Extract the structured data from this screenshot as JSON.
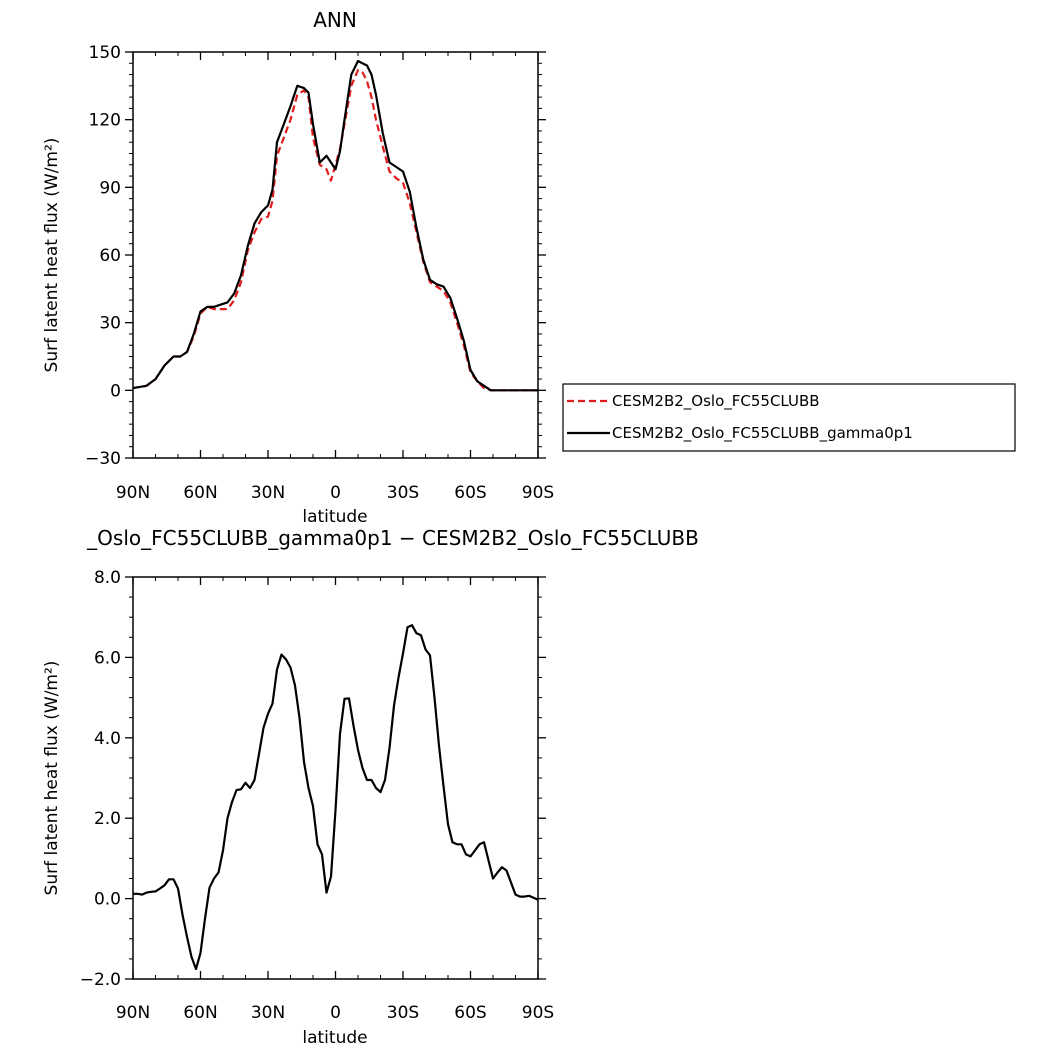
{
  "chart_data": [
    {
      "type": "line",
      "title": "ANN",
      "xlabel": "latitude",
      "ylabel": "Surf latent heat flux (W/m²)",
      "xlim": [
        -90,
        90
      ],
      "ylim": [
        -30,
        150
      ],
      "x_direction": "north-to-south",
      "x_tick_values": [
        -90,
        -60,
        -30,
        0,
        30,
        60,
        90
      ],
      "x_tick_labels": [
        "90N",
        "60N",
        "30N",
        "0",
        "30S",
        "60S",
        "90S"
      ],
      "y_tick_values": [
        -30,
        0,
        30,
        60,
        90,
        120,
        150
      ],
      "y_tick_labels": [
        "−30",
        "0",
        "30",
        "60",
        "90",
        "120",
        "150"
      ],
      "legend_position": "right",
      "grid": false,
      "series": [
        {
          "name": "CESM2B2_Oslo_FC55CLUBB",
          "color": "#e01c1c",
          "style": "dashed",
          "x": [
            -90,
            -84,
            -80,
            -76,
            -72,
            -69,
            -66,
            -63,
            -60,
            -57,
            -54,
            -51,
            -48,
            -45,
            -42,
            -39,
            -36,
            -33,
            -30,
            -28,
            -26,
            -23,
            -20,
            -17,
            -14,
            -12,
            -10,
            -7,
            -4,
            -2,
            0,
            2,
            4,
            7,
            10,
            12,
            14,
            16,
            18,
            21,
            24,
            27,
            30,
            33,
            36,
            39,
            42,
            45,
            48,
            51,
            54,
            57,
            60,
            63,
            66,
            69,
            72,
            75,
            78,
            81,
            84,
            87,
            90
          ],
          "values": [
            1,
            2,
            5,
            11,
            15,
            15,
            17,
            24,
            34,
            37,
            36,
            36,
            36,
            40,
            48,
            62,
            70,
            76,
            77,
            84,
            104,
            112,
            120,
            131,
            133,
            130,
            112,
            100,
            98,
            93,
            100,
            107,
            118,
            135,
            142,
            141,
            137,
            130,
            120,
            108,
            97,
            94,
            92,
            83,
            70,
            57,
            48,
            46,
            44,
            39,
            30,
            20,
            8,
            4,
            1,
            0,
            0,
            0,
            0,
            0,
            0,
            0,
            0
          ]
        },
        {
          "name": "CESM2B2_Oslo_FC55CLUBB_gamma0p1",
          "color": "#000000",
          "style": "solid",
          "x": [
            -90,
            -84,
            -80,
            -76,
            -72,
            -69,
            -66,
            -63,
            -60,
            -57,
            -54,
            -51,
            -48,
            -45,
            -42,
            -39,
            -36,
            -33,
            -30,
            -28,
            -26,
            -23,
            -20,
            -17,
            -14,
            -12,
            -10,
            -7,
            -4,
            -2,
            0,
            2,
            4,
            7,
            10,
            12,
            14,
            16,
            18,
            21,
            24,
            27,
            30,
            33,
            36,
            39,
            42,
            45,
            48,
            51,
            54,
            57,
            60,
            63,
            66,
            69,
            72,
            75,
            78,
            81,
            84,
            87,
            90
          ],
          "values": [
            1,
            2,
            5,
            11,
            15,
            15,
            17,
            25,
            35,
            37,
            37,
            38,
            39,
            43,
            51,
            64,
            74,
            79,
            82,
            89,
            110,
            118,
            126,
            135,
            134,
            132,
            118,
            101,
            104,
            101,
            98,
            106,
            120,
            140,
            146,
            145,
            144,
            140,
            131,
            114,
            101,
            99,
            97,
            88,
            72,
            58,
            49,
            47,
            46,
            41,
            32,
            22,
            9,
            4,
            2,
            0,
            0,
            0,
            0,
            0,
            0,
            0,
            0
          ]
        }
      ]
    },
    {
      "type": "line",
      "title": "_Oslo_FC55CLUBB_gamma0p1 − CESM2B2_Oslo_FC55CLUBB",
      "xlabel": "latitude",
      "ylabel": "Surf latent heat flux (W/m²)",
      "xlim": [
        -90,
        90
      ],
      "ylim": [
        -2,
        8
      ],
      "x_direction": "north-to-south",
      "x_tick_values": [
        -90,
        -60,
        -30,
        0,
        30,
        60,
        90
      ],
      "x_tick_labels": [
        "90N",
        "60N",
        "30N",
        "0",
        "30S",
        "60S",
        "90S"
      ],
      "y_tick_values": [
        -2,
        0,
        2,
        4,
        6,
        8
      ],
      "y_tick_labels": [
        "−2.0",
        "0.0",
        "2.0",
        "4.0",
        "6.0",
        "8.0"
      ],
      "grid": false,
      "series": [
        {
          "color": "#000000",
          "style": "solid",
          "x": [
            -90,
            -88,
            -86,
            -84,
            -82,
            -80,
            -78,
            -76,
            -74,
            -72,
            -70,
            -68,
            -66,
            -64,
            -62,
            -60,
            -58,
            -56,
            -54,
            -52,
            -50,
            -48,
            -46,
            -44,
            -42,
            -40,
            -38,
            -36,
            -34,
            -32,
            -30,
            -28,
            -26,
            -24,
            -22,
            -20,
            -18,
            -16,
            -14,
            -12,
            -10,
            -8,
            -6,
            -4,
            -2,
            0,
            2,
            4,
            6,
            8,
            10,
            12,
            14,
            16,
            18,
            20,
            22,
            24,
            26,
            28,
            30,
            32,
            34,
            36,
            38,
            40,
            42,
            44,
            46,
            48,
            50,
            52,
            54,
            56,
            58,
            60,
            62,
            64,
            66,
            68,
            70,
            72,
            74,
            76,
            78,
            80,
            82,
            84,
            86,
            88,
            90
          ],
          "values": [
            0.12,
            0.12,
            0.1,
            0.15,
            0.17,
            0.18,
            0.25,
            0.33,
            0.48,
            0.48,
            0.25,
            -0.4,
            -0.95,
            -1.45,
            -1.75,
            -1.35,
            -0.5,
            0.27,
            0.5,
            0.65,
            1.2,
            2.0,
            2.4,
            2.7,
            2.72,
            2.88,
            2.75,
            2.95,
            3.6,
            4.25,
            4.6,
            4.85,
            5.7,
            6.07,
            5.95,
            5.75,
            5.3,
            4.5,
            3.4,
            2.75,
            2.3,
            1.35,
            1.1,
            0.15,
            0.55,
            2.2,
            4.1,
            4.97,
            4.98,
            4.3,
            3.7,
            3.25,
            2.95,
            2.95,
            2.75,
            2.65,
            2.95,
            3.75,
            4.8,
            5.5,
            6.1,
            6.75,
            6.8,
            6.6,
            6.55,
            6.2,
            6.05,
            5.0,
            3.8,
            2.8,
            1.85,
            1.4,
            1.35,
            1.35,
            1.1,
            1.05,
            1.2,
            1.35,
            1.4,
            0.95,
            0.5,
            0.65,
            0.78,
            0.7,
            0.4,
            0.1,
            0.05,
            0.05,
            0.07,
            0.02,
            -0.03
          ]
        }
      ]
    }
  ]
}
